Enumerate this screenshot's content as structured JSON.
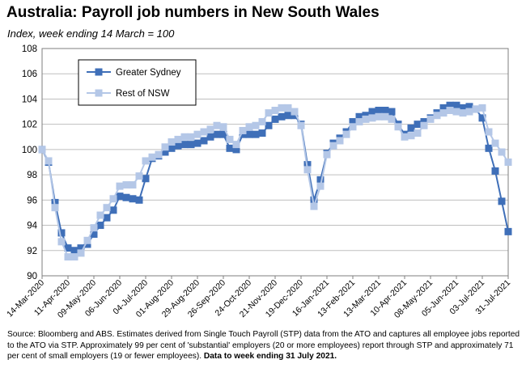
{
  "title": "Australia:  Payroll job numbers in New South Wales",
  "subtitle": "Index, week ending 14 March = 100",
  "source": {
    "text": "Source: Bloomberg and ABS.  Estimates derived from Single Touch Payroll (STP) data from the ATO and captures all employee jobs reported to the ATO via STP.  Approximately 99 per cent of 'substantial' employers (20 or more employees) report through STP and approximately 71 per cent of small employers (19 or fewer employees). ",
    "bold": "Data to week ending  31 July 2021."
  },
  "colors": {
    "greater_sydney": "#3f6fb8",
    "rest_of_nsw": "#b4c7e7"
  },
  "chart_data": {
    "type": "line",
    "ylim": [
      90,
      108
    ],
    "yticks": [
      90,
      92,
      94,
      96,
      98,
      100,
      102,
      104,
      106,
      108
    ],
    "grid": true,
    "legend_position": "top-left",
    "x_tick_labels": [
      "14-Mar-2020",
      "11-Apr-2020",
      "09-May-2020",
      "06-Jun-2020",
      "04-Jul-2020",
      "01-Aug-2020",
      "29-Aug-2020",
      "26-Sep-2020",
      "24-Oct-2020",
      "21-Nov-2020",
      "19-Dec-2020",
      "16-Jan-2021",
      "13-Feb-2021",
      "13-Mar-2021",
      "10-Apr-2021",
      "08-May-2021",
      "05-Jun-2021",
      "03-Jul-2021",
      "31-Jul-2021"
    ],
    "x_week_ending": [
      "14-Mar-2020",
      "21-Mar-2020",
      "28-Mar-2020",
      "04-Apr-2020",
      "11-Apr-2020",
      "18-Apr-2020",
      "25-Apr-2020",
      "02-May-2020",
      "09-May-2020",
      "16-May-2020",
      "23-May-2020",
      "30-May-2020",
      "06-Jun-2020",
      "13-Jun-2020",
      "20-Jun-2020",
      "27-Jun-2020",
      "04-Jul-2020",
      "11-Jul-2020",
      "18-Jul-2020",
      "25-Jul-2020",
      "01-Aug-2020",
      "08-Aug-2020",
      "15-Aug-2020",
      "22-Aug-2020",
      "29-Aug-2020",
      "05-Sep-2020",
      "12-Sep-2020",
      "19-Sep-2020",
      "26-Sep-2020",
      "03-Oct-2020",
      "10-Oct-2020",
      "17-Oct-2020",
      "24-Oct-2020",
      "31-Oct-2020",
      "07-Nov-2020",
      "14-Nov-2020",
      "21-Nov-2020",
      "28-Nov-2020",
      "05-Dec-2020",
      "12-Dec-2020",
      "19-Dec-2020",
      "26-Dec-2020",
      "02-Jan-2021",
      "09-Jan-2021",
      "16-Jan-2021",
      "23-Jan-2021",
      "30-Jan-2021",
      "06-Feb-2021",
      "13-Feb-2021",
      "20-Feb-2021",
      "27-Feb-2021",
      "06-Mar-2021",
      "13-Mar-2021",
      "20-Mar-2021",
      "27-Mar-2021",
      "03-Apr-2021",
      "10-Apr-2021",
      "17-Apr-2021",
      "24-Apr-2021",
      "01-May-2021",
      "08-May-2021",
      "15-May-2021",
      "22-May-2021",
      "29-May-2021",
      "05-Jun-2021",
      "12-Jun-2021",
      "19-Jun-2021",
      "26-Jun-2021",
      "03-Jul-2021",
      "10-Jul-2021",
      "17-Jul-2021",
      "24-Jul-2021",
      "31-Jul-2021"
    ],
    "series": [
      {
        "name": "Greater Sydney",
        "values": [
          100.0,
          99.0,
          95.8,
          93.4,
          92.2,
          92.0,
          92.2,
          92.5,
          93.3,
          94.0,
          94.6,
          95.2,
          96.3,
          96.2,
          96.1,
          96.0,
          97.7,
          99.3,
          99.5,
          99.8,
          100.1,
          100.3,
          100.4,
          100.4,
          100.5,
          100.7,
          101.0,
          101.2,
          101.2,
          100.1,
          100.0,
          101.2,
          101.2,
          101.2,
          101.3,
          101.9,
          102.4,
          102.6,
          102.7,
          102.7,
          102.0,
          98.8,
          96.0,
          97.6,
          99.7,
          100.5,
          100.9,
          101.4,
          102.2,
          102.6,
          102.7,
          103.0,
          103.1,
          103.1,
          103.0,
          102.0,
          101.2,
          101.7,
          102.0,
          102.2,
          102.5,
          102.9,
          103.3,
          103.5,
          103.5,
          103.3,
          103.4,
          103.2,
          102.5,
          100.1,
          98.3,
          95.9,
          93.5
        ]
      },
      {
        "name": "Rest of NSW",
        "values": [
          100.0,
          99.1,
          95.4,
          92.7,
          91.5,
          91.5,
          91.8,
          92.8,
          93.8,
          94.8,
          95.4,
          96.1,
          97.1,
          97.2,
          97.2,
          97.9,
          99.1,
          99.4,
          99.6,
          100.2,
          100.6,
          100.8,
          101.0,
          101.0,
          101.2,
          101.4,
          101.6,
          101.9,
          101.8,
          100.8,
          100.4,
          101.5,
          101.8,
          101.9,
          102.2,
          102.9,
          103.1,
          103.3,
          103.3,
          103.0,
          101.9,
          98.4,
          95.5,
          97.1,
          99.6,
          100.3,
          100.7,
          101.2,
          101.8,
          102.2,
          102.4,
          102.5,
          102.6,
          102.6,
          102.4,
          101.8,
          101.0,
          101.1,
          101.3,
          101.9,
          102.4,
          102.7,
          102.9,
          103.1,
          103.0,
          102.9,
          103.0,
          103.2,
          103.3,
          101.4,
          100.5,
          99.8,
          99.0
        ]
      }
    ]
  }
}
